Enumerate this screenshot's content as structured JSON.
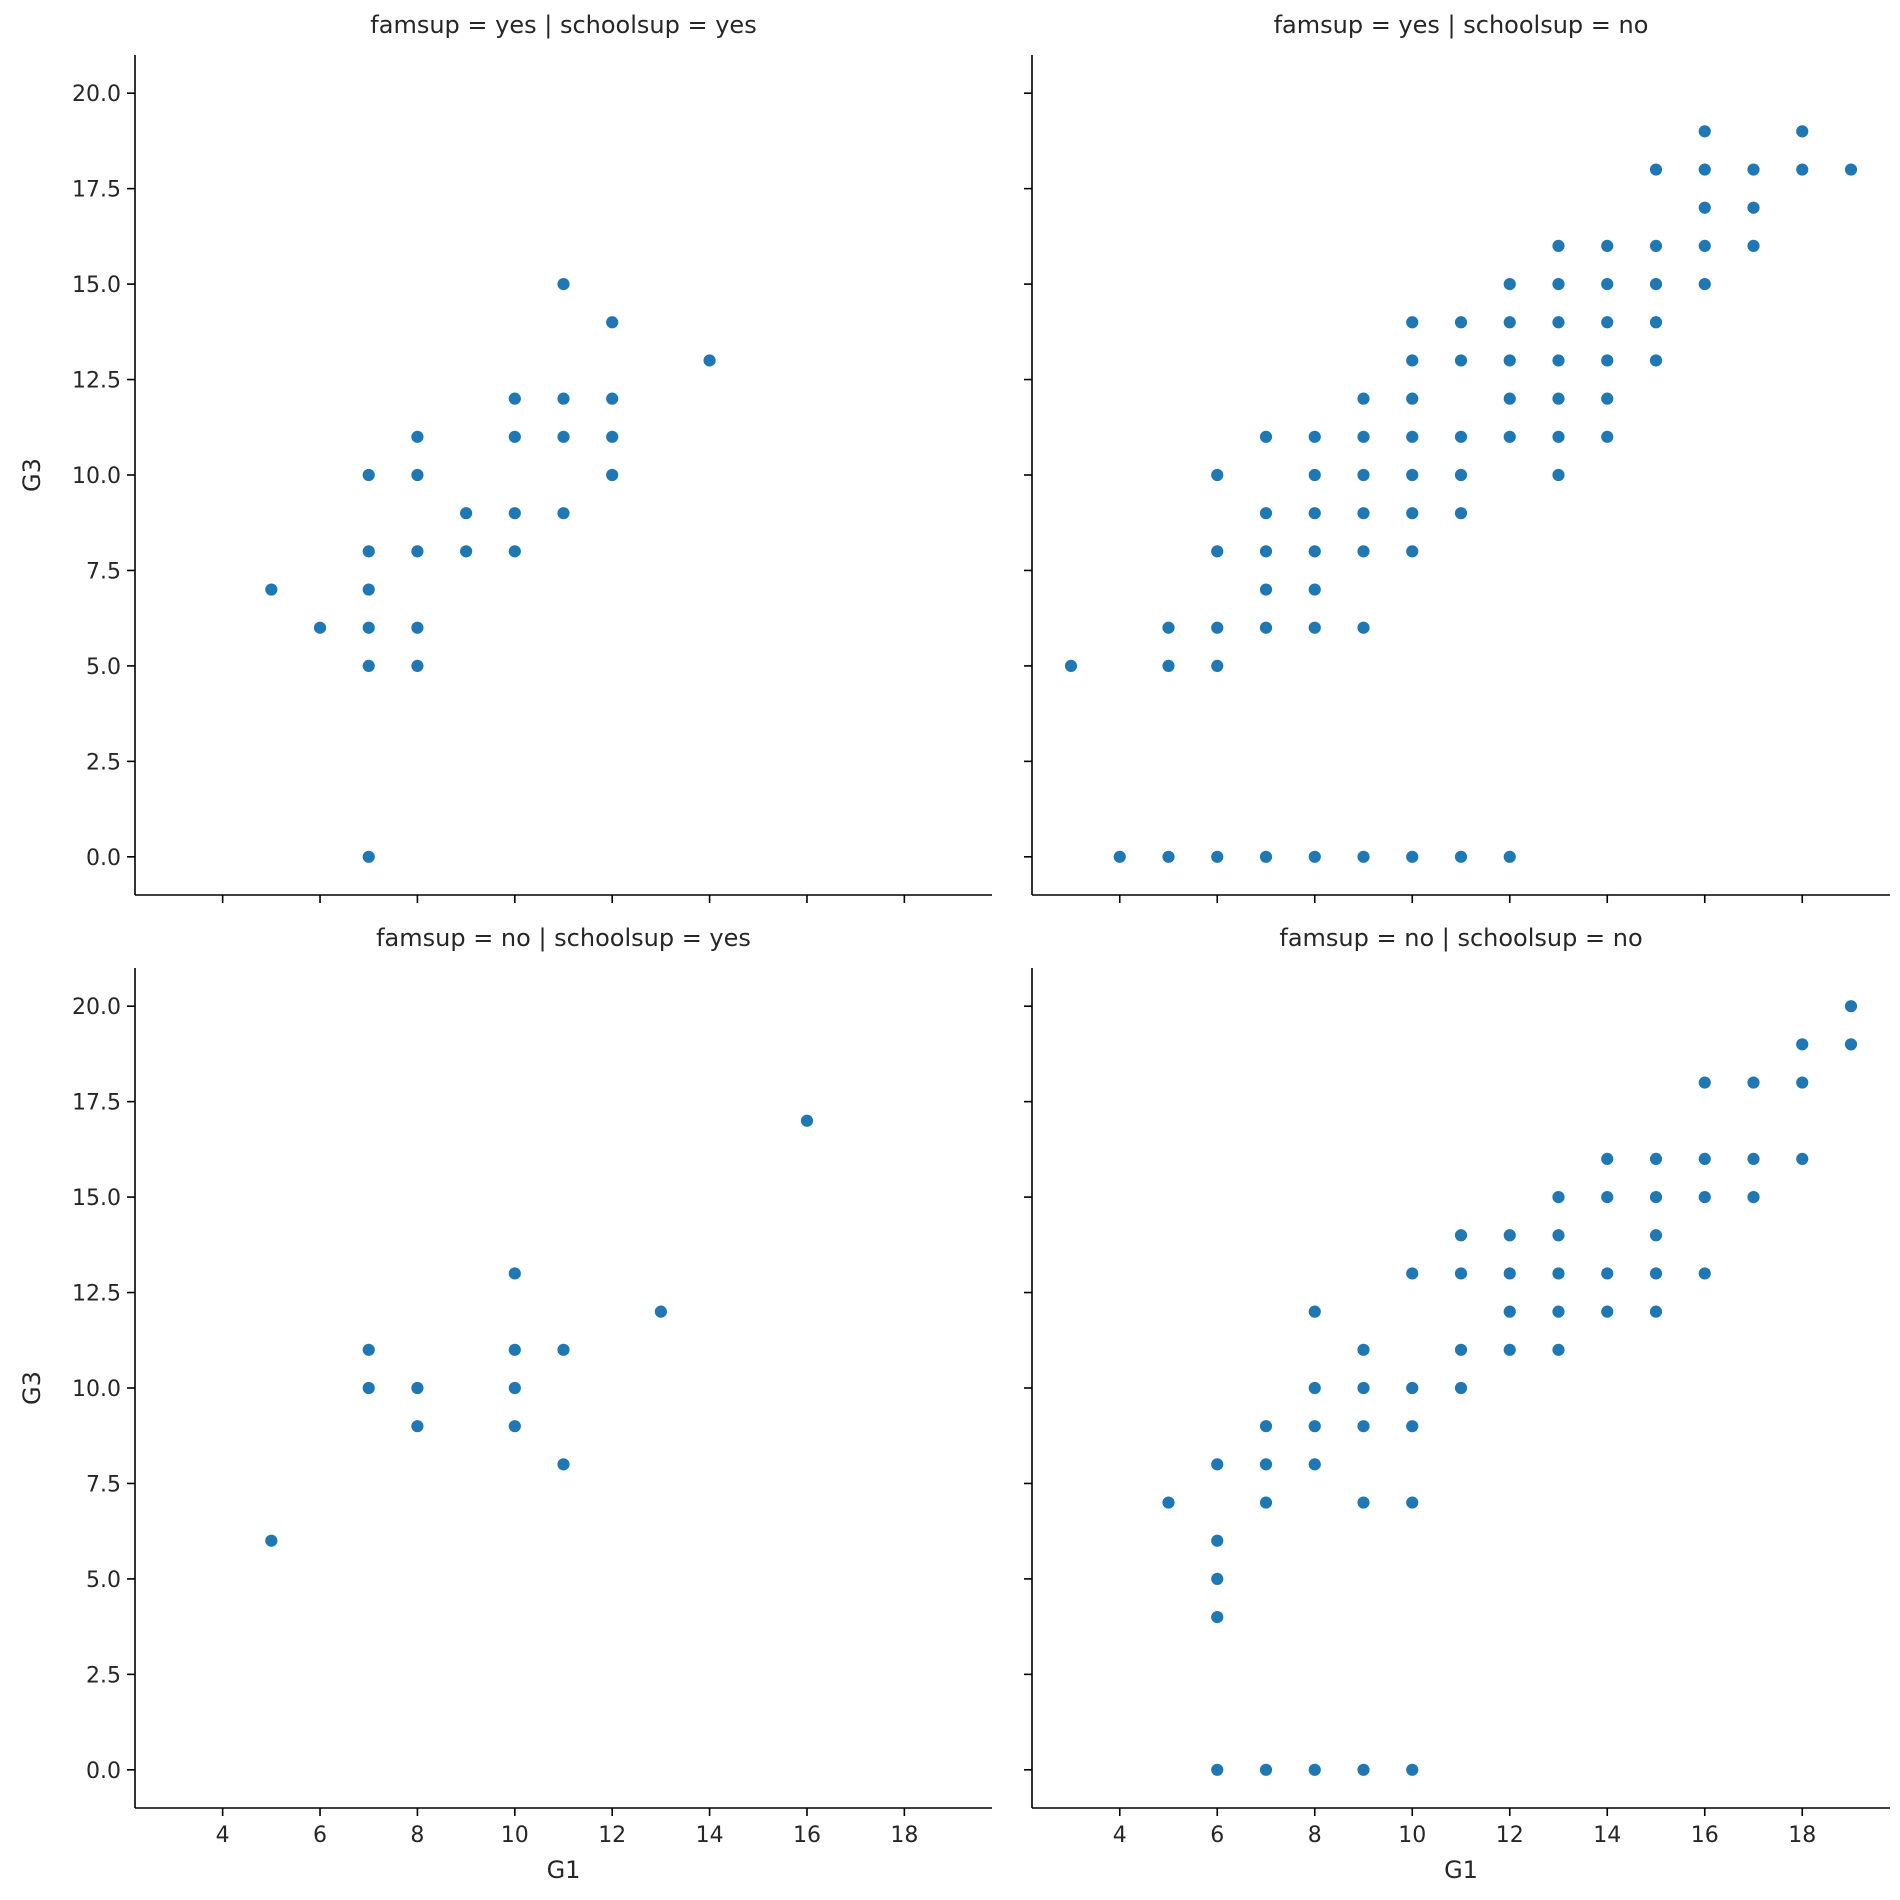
{
  "chart_data": {
    "type": "scatter",
    "xlabel": "G1",
    "ylabel": "G3",
    "xlim": [
      2.2,
      19.8
    ],
    "ylim": [
      -1.0,
      21.0
    ],
    "xticks": [
      "4",
      "6",
      "8",
      "10",
      "12",
      "14",
      "16",
      "18"
    ],
    "yticks": [
      "0.0",
      "2.5",
      "5.0",
      "7.5",
      "10.0",
      "12.5",
      "15.0",
      "17.5",
      "20.0"
    ],
    "marker_color": "#1f77b4",
    "facets": [
      {
        "title": "famsup = yes | schoolsup = yes",
        "points": [
          [
            5,
            7
          ],
          [
            6,
            6
          ],
          [
            7,
            0
          ],
          [
            7,
            5
          ],
          [
            7,
            6
          ],
          [
            7,
            7
          ],
          [
            7,
            8
          ],
          [
            7,
            10
          ],
          [
            8,
            5
          ],
          [
            8,
            6
          ],
          [
            8,
            8
          ],
          [
            8,
            10
          ],
          [
            8,
            11
          ],
          [
            9,
            8
          ],
          [
            9,
            9
          ],
          [
            10,
            8
          ],
          [
            10,
            9
          ],
          [
            10,
            11
          ],
          [
            10,
            12
          ],
          [
            11,
            9
          ],
          [
            11,
            11
          ],
          [
            11,
            12
          ],
          [
            11,
            15
          ],
          [
            12,
            10
          ],
          [
            12,
            11
          ],
          [
            12,
            12
          ],
          [
            12,
            14
          ],
          [
            14,
            13
          ]
        ]
      },
      {
        "title": "famsup = yes | schoolsup = no",
        "points": [
          [
            3,
            5
          ],
          [
            4,
            0
          ],
          [
            5,
            0
          ],
          [
            5,
            5
          ],
          [
            5,
            6
          ],
          [
            6,
            0
          ],
          [
            6,
            5
          ],
          [
            6,
            6
          ],
          [
            6,
            8
          ],
          [
            6,
            10
          ],
          [
            7,
            0
          ],
          [
            7,
            6
          ],
          [
            7,
            7
          ],
          [
            7,
            8
          ],
          [
            7,
            9
          ],
          [
            7,
            11
          ],
          [
            8,
            0
          ],
          [
            8,
            6
          ],
          [
            8,
            7
          ],
          [
            8,
            8
          ],
          [
            8,
            9
          ],
          [
            8,
            10
          ],
          [
            8,
            11
          ],
          [
            9,
            0
          ],
          [
            9,
            6
          ],
          [
            9,
            8
          ],
          [
            9,
            9
          ],
          [
            9,
            10
          ],
          [
            9,
            11
          ],
          [
            9,
            12
          ],
          [
            10,
            0
          ],
          [
            10,
            8
          ],
          [
            10,
            9
          ],
          [
            10,
            10
          ],
          [
            10,
            11
          ],
          [
            10,
            12
          ],
          [
            10,
            13
          ],
          [
            10,
            14
          ],
          [
            11,
            0
          ],
          [
            11,
            9
          ],
          [
            11,
            10
          ],
          [
            11,
            11
          ],
          [
            11,
            13
          ],
          [
            11,
            14
          ],
          [
            12,
            0
          ],
          [
            12,
            11
          ],
          [
            12,
            12
          ],
          [
            12,
            13
          ],
          [
            12,
            14
          ],
          [
            12,
            15
          ],
          [
            13,
            10
          ],
          [
            13,
            11
          ],
          [
            13,
            12
          ],
          [
            13,
            13
          ],
          [
            13,
            14
          ],
          [
            13,
            15
          ],
          [
            13,
            16
          ],
          [
            14,
            11
          ],
          [
            14,
            12
          ],
          [
            14,
            13
          ],
          [
            14,
            14
          ],
          [
            14,
            15
          ],
          [
            14,
            16
          ],
          [
            15,
            13
          ],
          [
            15,
            14
          ],
          [
            15,
            15
          ],
          [
            15,
            16
          ],
          [
            15,
            18
          ],
          [
            16,
            15
          ],
          [
            16,
            16
          ],
          [
            16,
            17
          ],
          [
            16,
            18
          ],
          [
            16,
            19
          ],
          [
            17,
            16
          ],
          [
            17,
            17
          ],
          [
            17,
            18
          ],
          [
            18,
            18
          ],
          [
            18,
            19
          ],
          [
            19,
            18
          ]
        ]
      },
      {
        "title": "famsup = no | schoolsup = yes",
        "points": [
          [
            5,
            6
          ],
          [
            7,
            10
          ],
          [
            7,
            11
          ],
          [
            8,
            9
          ],
          [
            8,
            10
          ],
          [
            10,
            9
          ],
          [
            10,
            10
          ],
          [
            10,
            11
          ],
          [
            10,
            13
          ],
          [
            11,
            8
          ],
          [
            11,
            11
          ],
          [
            13,
            12
          ],
          [
            16,
            17
          ]
        ]
      },
      {
        "title": "famsup = no | schoolsup = no",
        "points": [
          [
            5,
            7
          ],
          [
            6,
            0
          ],
          [
            6,
            4
          ],
          [
            6,
            5
          ],
          [
            6,
            6
          ],
          [
            6,
            8
          ],
          [
            7,
            0
          ],
          [
            7,
            7
          ],
          [
            7,
            8
          ],
          [
            7,
            9
          ],
          [
            8,
            0
          ],
          [
            8,
            8
          ],
          [
            8,
            9
          ],
          [
            8,
            10
          ],
          [
            8,
            12
          ],
          [
            9,
            0
          ],
          [
            9,
            7
          ],
          [
            9,
            9
          ],
          [
            9,
            10
          ],
          [
            9,
            11
          ],
          [
            10,
            0
          ],
          [
            10,
            7
          ],
          [
            10,
            9
          ],
          [
            10,
            10
          ],
          [
            10,
            13
          ],
          [
            11,
            10
          ],
          [
            11,
            11
          ],
          [
            11,
            13
          ],
          [
            11,
            14
          ],
          [
            12,
            11
          ],
          [
            12,
            12
          ],
          [
            12,
            13
          ],
          [
            12,
            14
          ],
          [
            13,
            11
          ],
          [
            13,
            12
          ],
          [
            13,
            13
          ],
          [
            13,
            14
          ],
          [
            13,
            15
          ],
          [
            14,
            12
          ],
          [
            14,
            13
          ],
          [
            14,
            15
          ],
          [
            14,
            16
          ],
          [
            15,
            12
          ],
          [
            15,
            13
          ],
          [
            15,
            14
          ],
          [
            15,
            15
          ],
          [
            15,
            16
          ],
          [
            16,
            13
          ],
          [
            16,
            15
          ],
          [
            16,
            16
          ],
          [
            16,
            18
          ],
          [
            17,
            15
          ],
          [
            17,
            16
          ],
          [
            17,
            18
          ],
          [
            18,
            16
          ],
          [
            18,
            18
          ],
          [
            18,
            19
          ],
          [
            19,
            19
          ],
          [
            19,
            20
          ]
        ]
      }
    ]
  }
}
